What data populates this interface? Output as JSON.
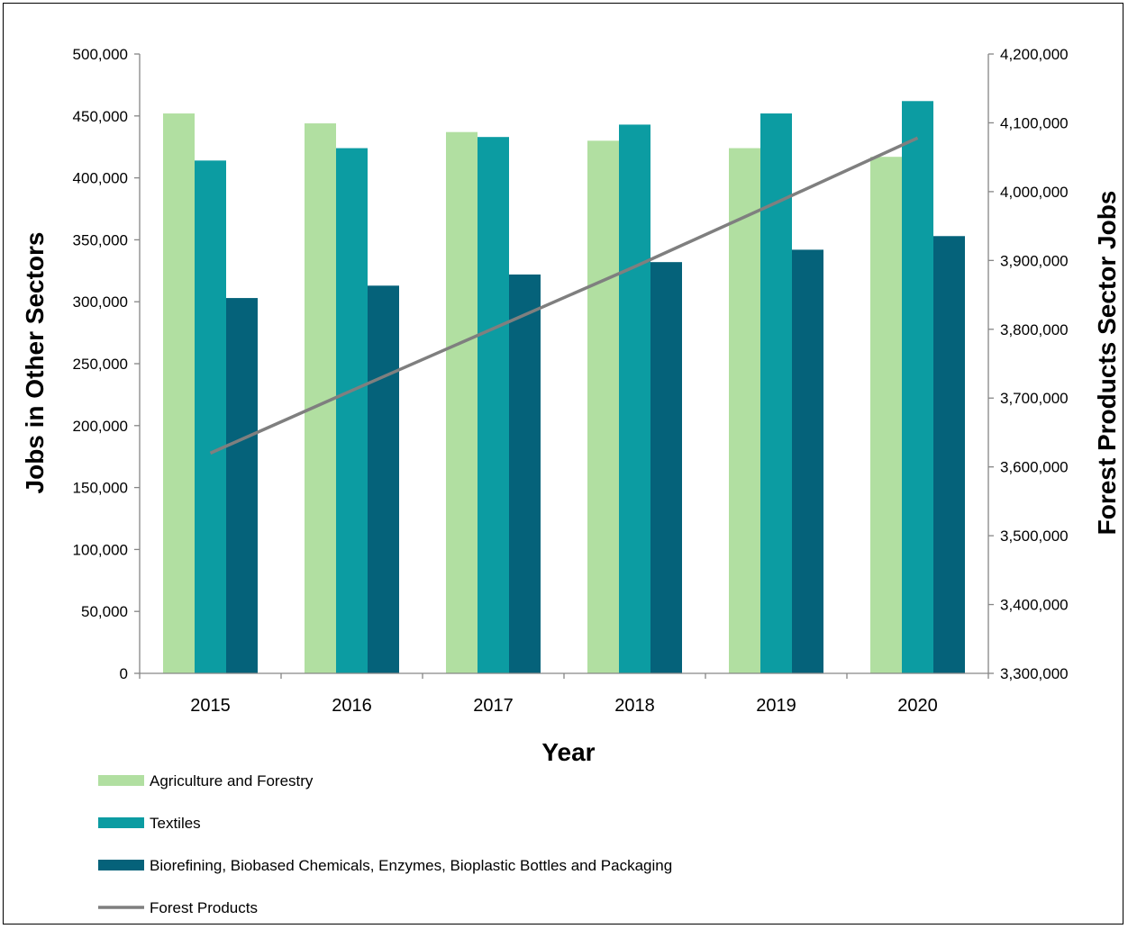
{
  "chart_data": {
    "type": "bar",
    "categories": [
      "2015",
      "2016",
      "2017",
      "2018",
      "2019",
      "2020"
    ],
    "series": [
      {
        "name": "Agriculture and Forestry",
        "type": "bar",
        "axis": "left",
        "color": "#b1dfa1",
        "values": [
          452000,
          444000,
          437000,
          430000,
          424000,
          417000
        ]
      },
      {
        "name": "Textiles",
        "type": "bar",
        "axis": "left",
        "color": "#0c9ca2",
        "values": [
          414000,
          424000,
          433000,
          443000,
          452000,
          462000
        ]
      },
      {
        "name": "Biorefining, Biobased Chemicals, Enzymes, Bioplastic Bottles and Packaging",
        "type": "bar",
        "axis": "left",
        "color": "#05627a",
        "values": [
          303000,
          313000,
          322000,
          332000,
          342000,
          353000
        ]
      },
      {
        "name": "Forest Products",
        "type": "line",
        "axis": "right",
        "color": "#7f7f7f",
        "values": [
          3620000,
          3711000,
          3801000,
          3891000,
          3984000,
          4078000
        ]
      }
    ],
    "xlabel": "Year",
    "ylabel": "Jobs in Other Sectors",
    "y2label": "Forest Products Sector Jobs",
    "ylim": [
      0,
      500000
    ],
    "y2lim": [
      3300000,
      4200000
    ],
    "yticks": [
      "0",
      "50,000",
      "100,000",
      "150,000",
      "200,000",
      "250,000",
      "300,000",
      "350,000",
      "400,000",
      "450,000",
      "500,000"
    ],
    "y2ticks": [
      "3,300,000",
      "3,400,000",
      "3,500,000",
      "3,600,000",
      "3,700,000",
      "3,800,000",
      "3,900,000",
      "4,000,000",
      "4,100,000",
      "4,200,000"
    ],
    "grid": false,
    "legend_position": "bottom-left"
  }
}
